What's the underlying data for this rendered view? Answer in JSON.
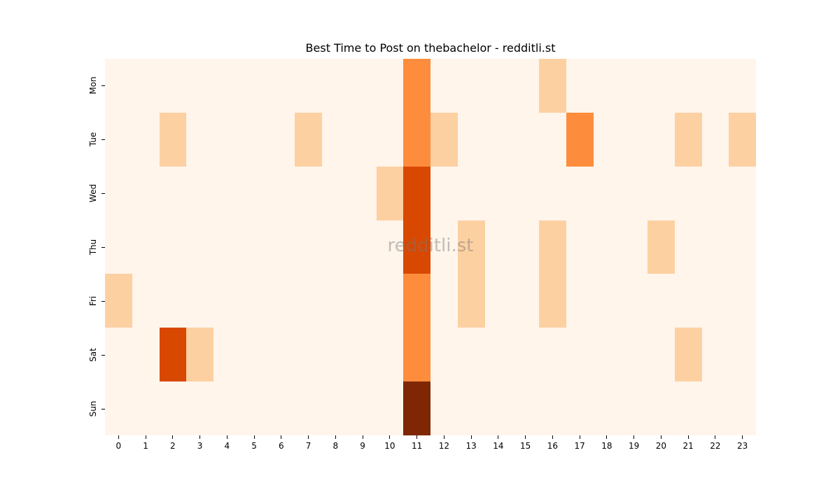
{
  "chart_data": {
    "type": "heatmap",
    "title": "Best Time to Post on thebachelor - redditli.st",
    "watermark": "redditli.st",
    "xlabel": "",
    "ylabel": "",
    "x_categories": [
      "0",
      "1",
      "2",
      "3",
      "4",
      "5",
      "6",
      "7",
      "8",
      "9",
      "10",
      "11",
      "12",
      "13",
      "14",
      "15",
      "16",
      "17",
      "18",
      "19",
      "20",
      "21",
      "22",
      "23"
    ],
    "y_categories": [
      "Mon",
      "Tue",
      "Wed",
      "Thu",
      "Fri",
      "Sat",
      "Sun"
    ],
    "colormap": "Oranges",
    "level_colors": [
      "#fff5eb",
      "#fdd0a2",
      "#fd8d3c",
      "#d94801",
      "#7f2704"
    ],
    "values": [
      [
        0,
        0,
        0,
        0,
        0,
        0,
        0,
        0,
        0,
        0,
        0,
        2,
        0,
        0,
        0,
        0,
        1,
        0,
        0,
        0,
        0,
        0,
        0,
        0
      ],
      [
        0,
        0,
        1,
        0,
        0,
        0,
        0,
        1,
        0,
        0,
        0,
        2,
        1,
        0,
        0,
        0,
        0,
        2,
        0,
        0,
        0,
        1,
        0,
        1
      ],
      [
        0,
        0,
        0,
        0,
        0,
        0,
        0,
        0,
        0,
        0,
        1,
        3,
        0,
        0,
        0,
        0,
        0,
        0,
        0,
        0,
        0,
        0,
        0,
        0
      ],
      [
        0,
        0,
        0,
        0,
        0,
        0,
        0,
        0,
        0,
        0,
        0,
        3,
        0,
        1,
        0,
        0,
        1,
        0,
        0,
        0,
        1,
        0,
        0,
        0
      ],
      [
        1,
        0,
        0,
        0,
        0,
        0,
        0,
        0,
        0,
        0,
        0,
        2,
        0,
        1,
        0,
        0,
        1,
        0,
        0,
        0,
        0,
        0,
        0,
        0
      ],
      [
        0,
        0,
        3,
        1,
        0,
        0,
        0,
        0,
        0,
        0,
        0,
        2,
        0,
        0,
        0,
        0,
        0,
        0,
        0,
        0,
        0,
        1,
        0,
        0
      ],
      [
        0,
        0,
        0,
        0,
        0,
        0,
        0,
        0,
        0,
        0,
        0,
        4,
        0,
        0,
        0,
        0,
        0,
        0,
        0,
        0,
        0,
        0,
        0,
        0
      ]
    ],
    "colorbar": false,
    "grid": false
  }
}
